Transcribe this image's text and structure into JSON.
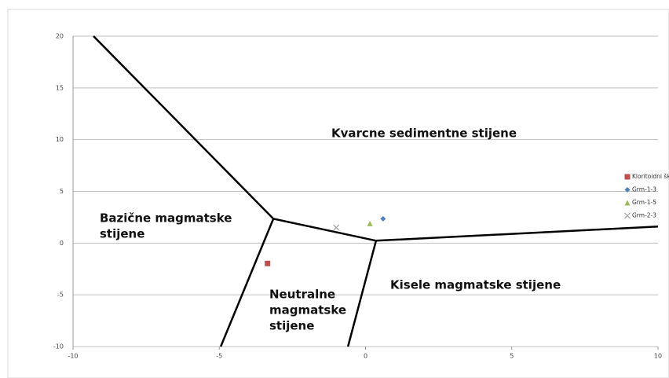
{
  "chart_data": {
    "type": "scatter",
    "xlim": [
      -10,
      10
    ],
    "ylim": [
      -10,
      20
    ],
    "xticks": [
      -10,
      -5,
      0,
      5,
      10
    ],
    "yticks": [
      -10,
      -5,
      0,
      5,
      10,
      15,
      20
    ],
    "grid": true,
    "legend": "right",
    "annotations": [
      {
        "lines": [
          "Kvarcne sedimentne stijene"
        ]
      },
      {
        "lines": [
          "Bazične magmatske",
          "stijene"
        ]
      },
      {
        "lines": [
          "Neutralne",
          "magmatske",
          "stijene"
        ]
      },
      {
        "lines": [
          "Kisele magmatske stijene"
        ]
      }
    ],
    "boundaries": [
      {
        "color": "#000000",
        "x": [
          -9.3,
          -3.15,
          0.36,
          10
        ],
        "y": [
          20,
          2.35,
          0.23,
          1.6
        ]
      },
      {
        "color": "#000000",
        "x": [
          -3.15,
          -4.95
        ],
        "y": [
          2.35,
          -10
        ]
      },
      {
        "color": "#000000",
        "x": [
          0.36,
          -0.6
        ],
        "y": [
          0.23,
          -10
        ]
      }
    ],
    "series": [
      {
        "name": "Kloritoidni šk",
        "color": "#c0504d",
        "marker": "square",
        "x": [
          -3.35
        ],
        "values": [
          -1.97
        ]
      },
      {
        "name": "Grm-1-3",
        "color": "#4f81bd",
        "marker": "diamond",
        "x": [
          0.6
        ],
        "values": [
          2.35
        ]
      },
      {
        "name": "Grm-1-5",
        "color": "#9bbb59",
        "marker": "triangle",
        "x": [
          0.15
        ],
        "values": [
          1.9
        ]
      },
      {
        "name": "Grm-2-3",
        "color": "#a0a0a0",
        "marker": "x",
        "x": [
          -1.0
        ],
        "values": [
          1.5
        ]
      }
    ]
  }
}
